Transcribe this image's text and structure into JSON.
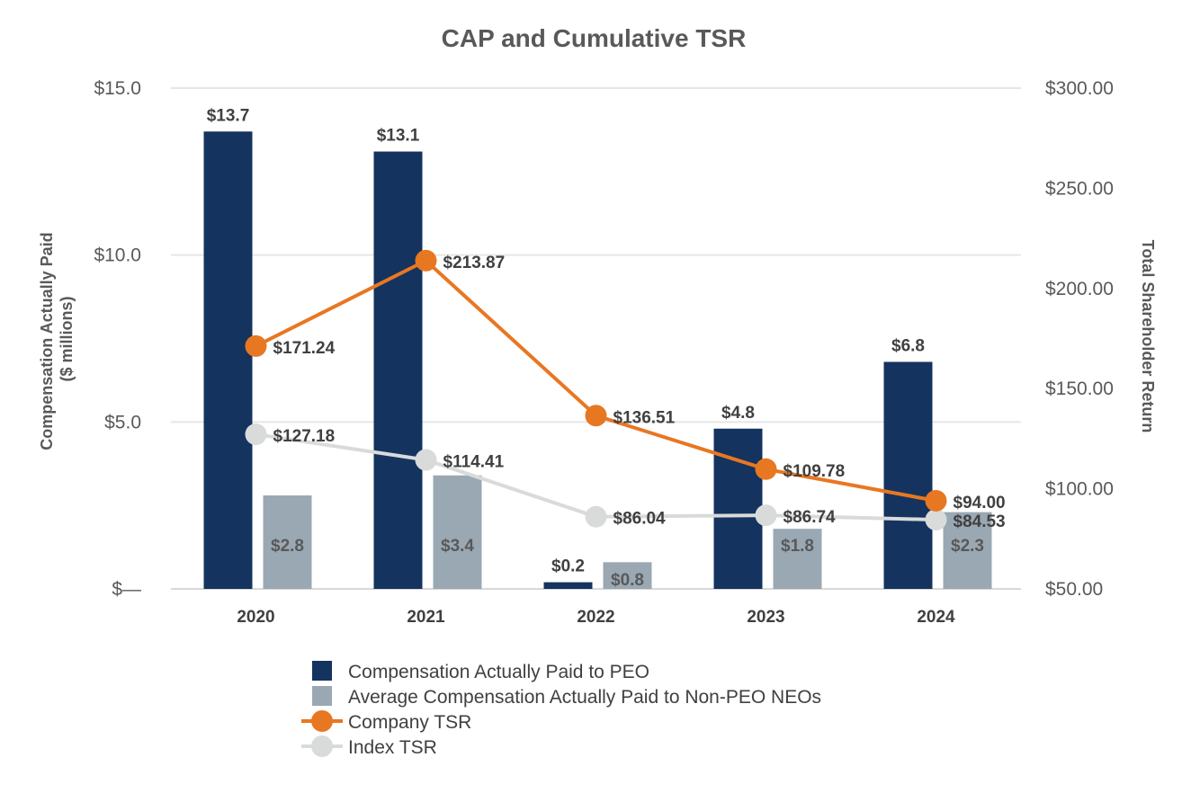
{
  "chart_data": {
    "type": "bar",
    "title": "CAP and Cumulative TSR",
    "categories": [
      "2020",
      "2021",
      "2022",
      "2023",
      "2024"
    ],
    "y_left": {
      "label_line1": "Compensation Actually Paid",
      "label_line2": "($ millions)",
      "range": [
        0,
        15
      ],
      "ticks": [
        0,
        5,
        10,
        15
      ],
      "tick_labels": [
        "$—",
        "$5.0",
        "$10.0",
        "$15.0"
      ]
    },
    "y_right": {
      "label": "Total Shareholder Return",
      "range": [
        50,
        300
      ],
      "ticks": [
        50,
        100,
        150,
        200,
        250,
        300
      ],
      "tick_labels": [
        "$50.00",
        "$100.00",
        "$150.00",
        "$200.00",
        "$250.00",
        "$300.00"
      ]
    },
    "grid": true,
    "legend_position": "bottom",
    "series": [
      {
        "name": "Compensation Actually Paid to PEO",
        "kind": "bar",
        "axis": "left",
        "color": "#14335f",
        "values": [
          13.7,
          13.1,
          0.2,
          4.8,
          6.8
        ],
        "labels": [
          "$13.7",
          "$13.1",
          "$0.2",
          "$4.8",
          "$6.8"
        ]
      },
      {
        "name": "Average Compensation Actually Paid to Non-PEO NEOs",
        "kind": "bar",
        "axis": "left",
        "color": "#9aa8b3",
        "values": [
          2.8,
          3.4,
          0.8,
          1.8,
          2.3
        ],
        "labels": [
          "$2.8",
          "$3.4",
          "$0.8",
          "$1.8",
          "$2.3"
        ]
      },
      {
        "name": "Company TSR",
        "kind": "line",
        "axis": "right",
        "color": "#e87722",
        "values": [
          171.24,
          213.87,
          136.51,
          109.78,
          94.0
        ],
        "labels": [
          "$171.24",
          "$213.87",
          "$136.51",
          "$109.78",
          "$94.00"
        ]
      },
      {
        "name": "Index TSR",
        "kind": "line",
        "axis": "right",
        "color": "#d9dbdb",
        "values": [
          127.18,
          114.41,
          86.04,
          86.74,
          84.53
        ],
        "labels": [
          "$127.18",
          "$114.41",
          "$86.04",
          "$86.74",
          "$84.53"
        ]
      }
    ]
  }
}
